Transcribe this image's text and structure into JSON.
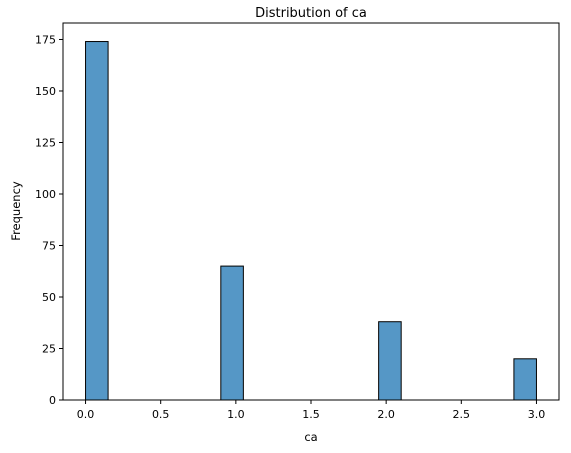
{
  "chart_data": {
    "type": "bar",
    "title": "Distribution of ca",
    "xlabel": "ca",
    "ylabel": "Frequency",
    "xlim": [
      -0.15,
      3.15
    ],
    "ylim": [
      0,
      183
    ],
    "xticks": [
      0.0,
      0.5,
      1.0,
      1.5,
      2.0,
      2.5,
      3.0
    ],
    "xtick_labels": [
      "0.0",
      "0.5",
      "1.0",
      "1.5",
      "2.0",
      "2.5",
      "3.0"
    ],
    "yticks": [
      0,
      25,
      50,
      75,
      100,
      125,
      150,
      175
    ],
    "ytick_labels": [
      "0",
      "25",
      "50",
      "75",
      "100",
      "125",
      "150",
      "175"
    ],
    "bars": [
      {
        "x0": 0.0,
        "x1": 0.15,
        "value": 174
      },
      {
        "x0": 0.9,
        "x1": 1.05,
        "value": 65
      },
      {
        "x0": 1.95,
        "x1": 2.1,
        "value": 38
      },
      {
        "x0": 2.85,
        "x1": 3.0,
        "value": 20
      }
    ],
    "bar_color": "#5597c6",
    "edge_color": "#000000",
    "grid": false,
    "legend": false
  }
}
